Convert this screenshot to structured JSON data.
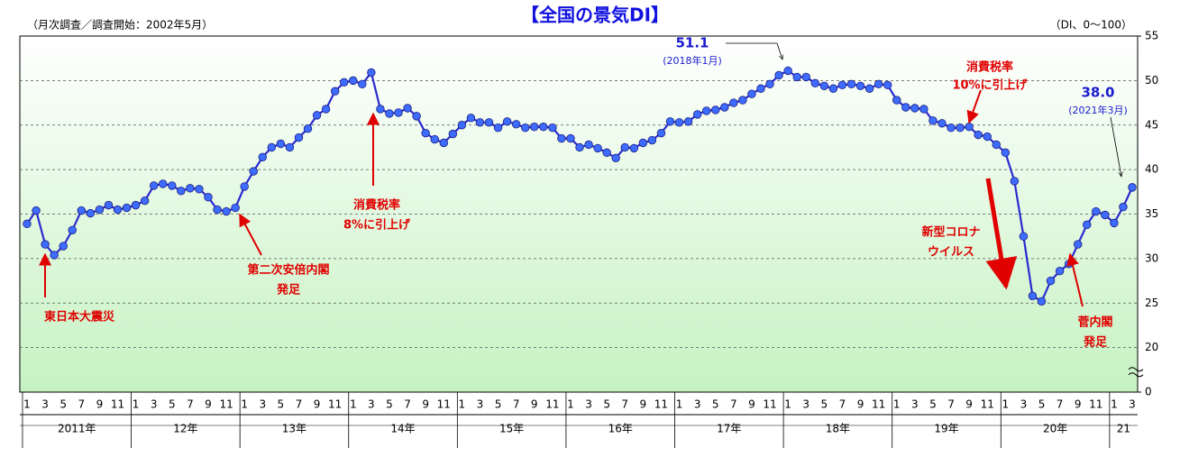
{
  "chart_data": {
    "type": "line",
    "title": "【全国の景気DI】",
    "subtitle": "（月次調査／調査開始：2002年5月）",
    "unit_note": "（DI、0～100）",
    "categories": [
      "1",
      null,
      "3",
      null,
      "5",
      null,
      "7",
      null,
      "9",
      null,
      "11",
      null,
      "1",
      null,
      "3",
      null,
      "5",
      null,
      "7",
      null,
      "9",
      null,
      "11",
      null,
      "1",
      null,
      "3",
      null,
      "5",
      null,
      "7",
      null,
      "9",
      null,
      "11",
      null,
      "1",
      null,
      "3",
      null,
      "5",
      null,
      "7",
      null,
      "9",
      null,
      "11",
      null,
      "1",
      null,
      "3",
      null,
      "5",
      null,
      "7",
      null,
      "9",
      null,
      "11",
      null,
      "1",
      null,
      "3",
      null,
      "5",
      null,
      "7",
      null,
      "9",
      null,
      "11",
      null,
      "1",
      null,
      "3",
      null,
      "5",
      null,
      "7",
      null,
      "9",
      null,
      "11",
      null,
      "1",
      null,
      "3",
      null,
      "5",
      null,
      "7",
      null,
      "9",
      null,
      "11",
      null,
      "1",
      null,
      "3",
      null,
      "5",
      null,
      "7",
      null,
      "9",
      null,
      "11",
      null,
      "1",
      null,
      "3",
      null,
      "5",
      null,
      "7",
      null,
      "9",
      null,
      "11",
      null,
      "1",
      null,
      "3"
    ],
    "year_labels": [
      "2011年",
      "12年",
      "13年",
      "14年",
      "15年",
      "16年",
      "17年",
      "18年",
      "19年",
      "20年",
      "21"
    ],
    "series": [
      {
        "name": "全国の景気DI",
        "color": "#2a2ad0",
        "marker_color": "#3d6cff",
        "values": [
          33.9,
          35.4,
          31.6,
          30.4,
          31.4,
          33.2,
          35.4,
          35.1,
          35.5,
          36.0,
          35.5,
          35.7,
          36.0,
          36.5,
          38.2,
          38.4,
          38.2,
          37.6,
          37.9,
          37.8,
          36.9,
          35.5,
          35.3,
          35.7,
          38.1,
          39.8,
          41.4,
          42.5,
          42.9,
          42.5,
          43.6,
          44.6,
          46.1,
          46.8,
          48.8,
          49.8,
          50.0,
          49.6,
          50.9,
          46.8,
          46.3,
          46.4,
          46.9,
          46.0,
          44.1,
          43.4,
          43.0,
          44.0,
          45.0,
          45.8,
          45.3,
          45.3,
          44.7,
          45.4,
          45.1,
          44.7,
          44.8,
          44.8,
          44.7,
          43.5,
          43.5,
          42.5,
          42.8,
          42.4,
          41.9,
          41.3,
          42.5,
          42.4,
          43.0,
          43.3,
          44.1,
          45.4,
          45.3,
          45.4,
          46.2,
          46.6,
          46.7,
          47.0,
          47.5,
          47.8,
          48.5,
          49.1,
          49.6,
          50.6,
          51.1,
          50.4,
          50.4,
          49.7,
          49.4,
          49.1,
          49.5,
          49.6,
          49.4,
          49.1,
          49.6,
          49.5,
          47.8,
          47.0,
          46.9,
          46.8,
          45.5,
          45.2,
          44.7,
          44.7,
          44.8,
          43.9,
          43.7,
          42.8,
          41.9,
          38.7,
          32.5,
          25.8,
          25.2,
          27.5,
          28.6,
          29.4,
          31.6,
          33.8,
          35.3,
          34.9,
          34.0,
          35.8,
          38.0
        ]
      }
    ],
    "ylim": [
      0,
      55
    ],
    "yticks": [
      0,
      20,
      25,
      30,
      35,
      40,
      45,
      50,
      55
    ],
    "axis_break": true,
    "grid": true,
    "annotations": [
      {
        "lines": [
          "東日本大震災"
        ]
      },
      {
        "lines": [
          "第二次安倍内閣",
          "発足"
        ]
      },
      {
        "lines": [
          "消費税率",
          "8%に引上げ"
        ]
      },
      {
        "lines": [
          "51.1",
          "(2018年1月)"
        ]
      },
      {
        "lines": [
          "消費税率",
          "10%に引上げ"
        ]
      },
      {
        "lines": [
          "新型コロナ",
          "ウイルス"
        ]
      },
      {
        "lines": [
          "菅内閣",
          "発足"
        ]
      },
      {
        "lines": [
          "38.0",
          "(2021年3月)"
        ]
      }
    ]
  }
}
